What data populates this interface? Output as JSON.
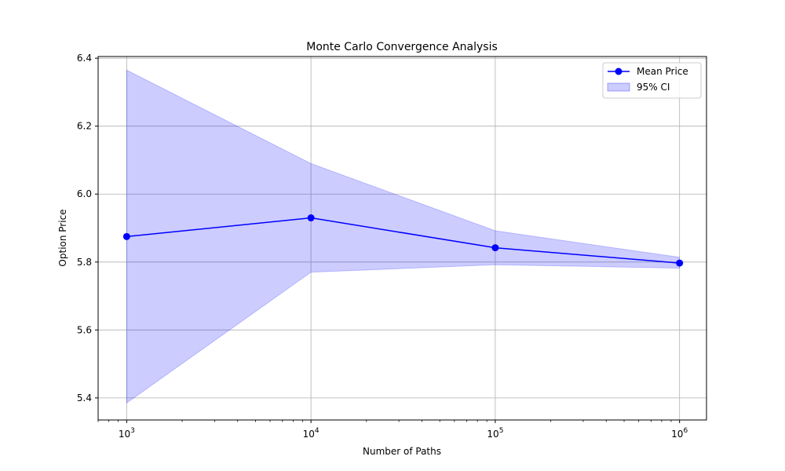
{
  "chart_data": {
    "type": "line",
    "title": "Monte Carlo Convergence Analysis",
    "xlabel": "Number of Paths",
    "ylabel": "Option Price",
    "x_scale": "log",
    "x": [
      1000,
      10000,
      100000,
      1000000
    ],
    "x_tick_labels": [
      {
        "value": 1000,
        "base": "10",
        "exp": "3"
      },
      {
        "value": 10000,
        "base": "10",
        "exp": "4"
      },
      {
        "value": 100000,
        "base": "10",
        "exp": "5"
      },
      {
        "value": 1000000,
        "base": "10",
        "exp": "6"
      }
    ],
    "y_ticks": [
      5.4,
      5.6,
      5.8,
      6.0,
      6.2,
      6.4
    ],
    "y_tick_labels": [
      "5.4",
      "5.6",
      "5.8",
      "6.0",
      "6.2",
      "6.4"
    ],
    "xlim": [
      700,
      1400000
    ],
    "ylim": [
      5.335,
      6.405
    ],
    "grid": true,
    "legend_position": "top-right",
    "series": [
      {
        "name": "Mean Price",
        "kind": "line-marker",
        "color": "#0000ff",
        "values": [
          5.875,
          5.93,
          5.842,
          5.797
        ]
      },
      {
        "name": "95% CI",
        "kind": "band",
        "color": "#0000ff",
        "fill_opacity": 0.2,
        "lower": [
          5.385,
          5.77,
          5.792,
          5.782
        ],
        "upper": [
          6.365,
          6.09,
          5.892,
          5.814
        ]
      }
    ]
  }
}
